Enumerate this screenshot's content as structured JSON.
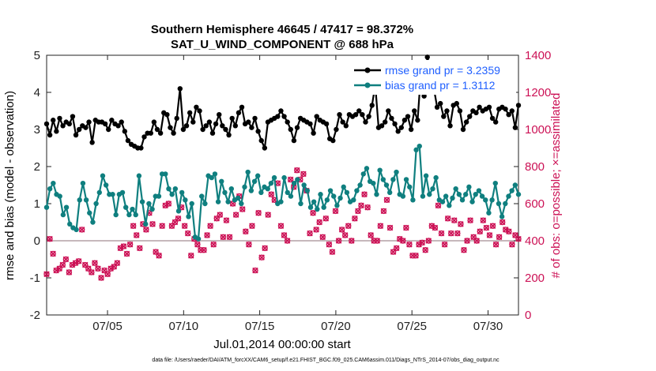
{
  "chart_data": {
    "type": "line",
    "title_line1": "Southern Hemisphere 46645 / 47417 = 98.372%",
    "title_line2": "SAT_U_WIND_COMPONENT @ 688 hPa",
    "xlabel": "Jul.01,2014 00:00:00 start",
    "ylabel_left": "rmse and bias (model - observation)",
    "ylabel_right": "# of obs: o=possible; ×=assimilated",
    "footnote": "data file: /Users/raeder/DAI/ATM_forcXX/CAM6_setup/f.e21.FHIST_BGC.f09_025.CAM6assim.011/Diags_NTrS_2014-07/obs_diag_output.nc",
    "x_ticks": [
      "07/05",
      "07/10",
      "07/15",
      "07/20",
      "07/25",
      "07/30"
    ],
    "x_tick_days": [
      5,
      10,
      15,
      20,
      25,
      30
    ],
    "xlim_days": [
      1,
      32
    ],
    "ylim_left": [
      -2,
      5
    ],
    "yticks_left": [
      "-2",
      "-1",
      "0",
      "1",
      "2",
      "3",
      "4",
      "5"
    ],
    "ylim_right": [
      0,
      1400
    ],
    "yticks_right": [
      "0",
      "200",
      "400",
      "600",
      "800",
      "1000",
      "1200",
      "1400"
    ],
    "colors": {
      "rmse": "#000000",
      "bias": "#0f7f7f",
      "obs": "#cc1155",
      "zero_line": "#b4a0a5",
      "legend_text": "#1f5fff"
    },
    "grid": false,
    "legend_placement": "top-right",
    "series": [
      {
        "name": "rmse grand pr = 3.2359",
        "axis": "left",
        "values": [
          3.15,
          2.85,
          3.25,
          2.95,
          3.3,
          3.1,
          3.2,
          3.15,
          3.35,
          2.85,
          3.0,
          3.1,
          3.05,
          3.2,
          2.65,
          3.25,
          3.2,
          3.2,
          3.15,
          3.0,
          3.25,
          3.15,
          3.1,
          3.2,
          2.95,
          2.7,
          2.6,
          2.55,
          2.5,
          2.5,
          2.8,
          2.9,
          2.9,
          3.2,
          3.0,
          2.9,
          3.45,
          3.4,
          3.05,
          2.9,
          3.3,
          4.1,
          3.0,
          3.1,
          3.45,
          3.2,
          3.6,
          3.5,
          3.0,
          3.1,
          3.2,
          2.9,
          3.15,
          3.4,
          3.1,
          3.0,
          2.85,
          3.3,
          3.1,
          3.45,
          3.6,
          3.15,
          3.2,
          3.05,
          3.3,
          2.95,
          2.7,
          2.5,
          3.2,
          3.25,
          3.3,
          3.35,
          3.5,
          3.35,
          3.2,
          3.0,
          2.7,
          3.05,
          3.3,
          3.25,
          3.2,
          3.15,
          2.9,
          3.35,
          3.25,
          3.2,
          3.15,
          2.75,
          2.7,
          3.0,
          3.4,
          3.2,
          3.1,
          3.4,
          3.35,
          3.4,
          3.5,
          3.4,
          3.2,
          3.35,
          3.65,
          4.2,
          3.05,
          3.1,
          3.2,
          3.5,
          3.3,
          3.15,
          2.95,
          3.05,
          3.25,
          3.35,
          3.0,
          3.5,
          3.25,
          4.5,
          3.9,
          4.95,
          4.6,
          4.1,
          3.6,
          3.7,
          3.35,
          3.5,
          3.1,
          3.65,
          3.7,
          3.5,
          3.0,
          3.2,
          3.35,
          3.5,
          3.45,
          3.6,
          3.5,
          3.55,
          3.6,
          3.3,
          3.2,
          3.55,
          3.6,
          3.55,
          3.4,
          3.5,
          3.05,
          3.65
        ]
      },
      {
        "name": "bias grand pr = 1.3112",
        "axis": "left",
        "values": [
          0.9,
          1.4,
          1.55,
          1.25,
          1.2,
          0.7,
          0.9,
          0.45,
          0.35,
          0.3,
          1.1,
          1.55,
          1.1,
          0.75,
          0.5,
          1.0,
          1.3,
          1.75,
          1.5,
          1.25,
          1.25,
          0.7,
          1.25,
          1.3,
          0.9,
          0.7,
          0.85,
          0.7,
          1.75,
          1.05,
          0.45,
          1.0,
          0.85,
          1.2,
          1.2,
          1.8,
          1.8,
          1.4,
          1.25,
          1.4,
          0.8,
          1.3,
          1.1,
          0.65,
          1.0,
          0.1,
          0.05,
          1.2,
          1.0,
          1.75,
          1.7,
          1.8,
          1.05,
          1.6,
          1.3,
          1.05,
          1.4,
          1.1,
          1.15,
          1.0,
          1.45,
          1.85,
          1.35,
          1.6,
          1.75,
          1.3,
          1.45,
          1.4,
          1.55,
          1.7,
          1.0,
          1.05,
          1.7,
          1.3,
          1.2,
          1.55,
          1.65,
          1.0,
          1.5,
          1.35,
          0.9,
          1.05,
          0.85,
          1.25,
          0.9,
          1.1,
          1.35,
          1.2,
          0.95,
          1.15,
          1.45,
          1.3,
          1.05,
          1.1,
          1.35,
          1.5,
          1.8,
          1.95,
          1.6,
          1.55,
          1.25,
          1.9,
          1.65,
          1.5,
          1.3,
          1.65,
          1.85,
          1.25,
          1.2,
          1.65,
          1.45,
          1.1,
          2.45,
          2.55,
          1.2,
          1.75,
          1.25,
          1.4,
          1.7,
          1.1,
          1.05,
          1.2,
          0.95,
          1.15,
          1.4,
          1.25,
          1.1,
          1.25,
          1.45,
          1.05,
          1.25,
          1.35,
          1.2,
          1.1,
          0.75,
          1.1,
          1.55,
          1.0,
          0.65,
          1.0,
          1.2,
          1.35,
          1.5,
          1.25
        ]
      },
      {
        "name": "# of obs",
        "axis": "right",
        "values": [
          220,
          410,
          330,
          240,
          250,
          270,
          300,
          230,
          270,
          280,
          290,
          460,
          270,
          250,
          230,
          280,
          250,
          200,
          240,
          220,
          250,
          260,
          280,
          360,
          370,
          330,
          380,
          480,
          430,
          360,
          490,
          460,
          550,
          490,
          340,
          320,
          480,
          590,
          600,
          480,
          500,
          520,
          580,
          480,
          440,
          320,
          410,
          380,
          350,
          350,
          430,
          480,
          380,
          520,
          540,
          420,
          510,
          420,
          600,
          540,
          640,
          570,
          450,
          380,
          480,
          240,
          550,
          310,
          360,
          540,
          650,
          620,
          710,
          480,
          430,
          400,
          730,
          690,
          780,
          730,
          760,
          670,
          440,
          550,
          460,
          500,
          420,
          520,
          380,
          340,
          560,
          400,
          460,
          430,
          480,
          400,
          520,
          560,
          590,
          650,
          580,
          430,
          400,
          400,
          480,
          560,
          620,
          470,
          340,
          360,
          410,
          400,
          470,
          380,
          320,
          320,
          380,
          390,
          350,
          400,
          480,
          470,
          590,
          440,
          380,
          520,
          440,
          510,
          440,
          490,
          350,
          400,
          510,
          420,
          400,
          450,
          510,
          470,
          430,
          480,
          380,
          420,
          500,
          460,
          450,
          380,
          430,
          410
        ]
      }
    ],
    "obs_timing_note": ""
  }
}
